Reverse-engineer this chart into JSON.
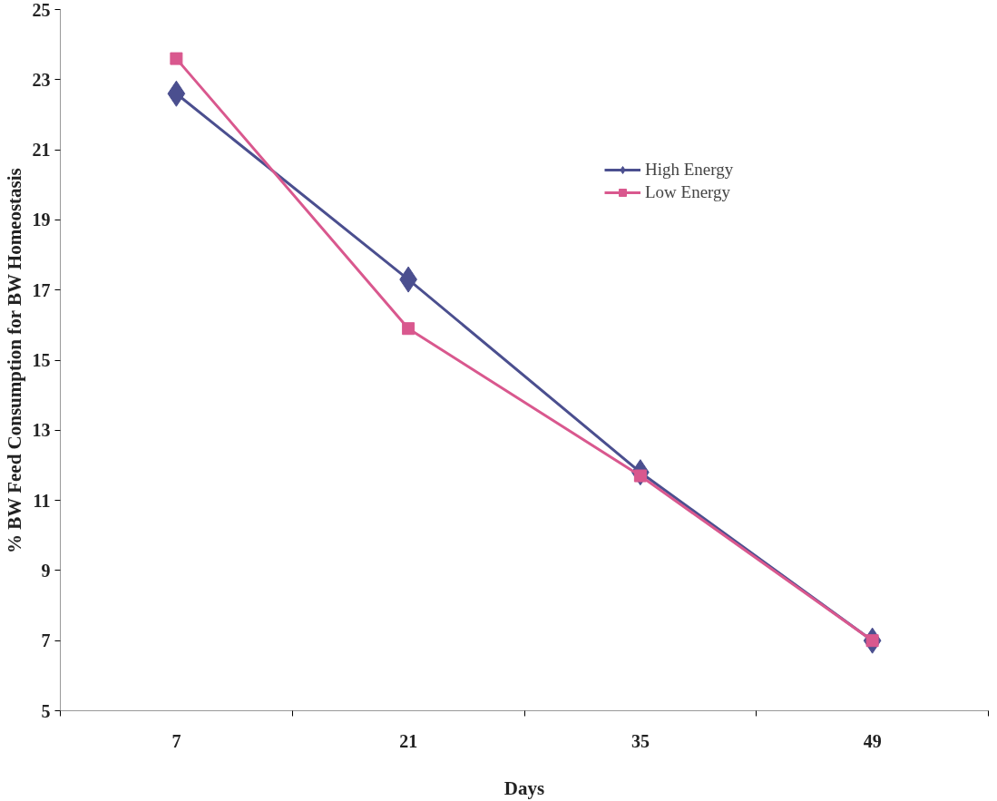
{
  "chart_data": {
    "type": "line",
    "xlabel": "Days",
    "ylabel": "% BW Feed Consumption for BW Homeostasis",
    "categories": [
      "7",
      "21",
      "35",
      "49"
    ],
    "series": [
      {
        "name": "High Energy",
        "color": "#4b4f8f",
        "marker": "diamond",
        "values": [
          22.6,
          17.3,
          11.8,
          7.0
        ]
      },
      {
        "name": "Low Energy",
        "color": "#d9588e",
        "marker": "square",
        "values": [
          23.6,
          15.9,
          11.7,
          7.0
        ]
      }
    ],
    "ylim": [
      5,
      25
    ],
    "yticks": [
      5,
      7,
      9,
      11,
      13,
      15,
      17,
      19,
      21,
      23,
      25
    ],
    "grid": false,
    "legend": "top right",
    "line_style": "solid"
  }
}
